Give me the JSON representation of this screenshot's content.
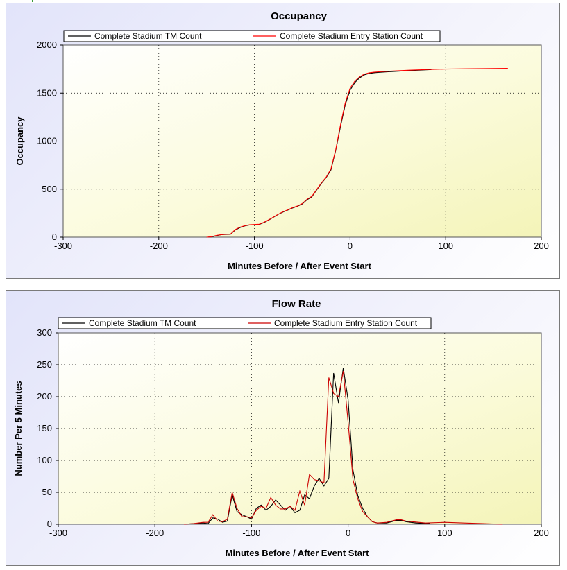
{
  "chart_data": [
    {
      "type": "line",
      "title": "Occupancy",
      "xlabel": "Minutes Before / After Event Start",
      "ylabel": "Occupancy",
      "xlim": [
        -300,
        200
      ],
      "ylim": [
        0,
        2000
      ],
      "xticks": [
        -300,
        -200,
        -100,
        0,
        100,
        200
      ],
      "yticks": [
        0,
        500,
        1000,
        1500,
        2000
      ],
      "grid": true,
      "legend_position": "top",
      "series": [
        {
          "name": "Complete Stadium TM Count",
          "color": "#000000",
          "points": [
            [
              -150,
              0
            ],
            [
              -145,
              3
            ],
            [
              -140,
              15
            ],
            [
              -135,
              25
            ],
            [
              -130,
              28
            ],
            [
              -125,
              30
            ],
            [
              -120,
              75
            ],
            [
              -115,
              100
            ],
            [
              -110,
              118
            ],
            [
              -105,
              128
            ],
            [
              -100,
              130
            ],
            [
              -95,
              132
            ],
            [
              -90,
              152
            ],
            [
              -85,
              178
            ],
            [
              -80,
              208
            ],
            [
              -75,
              238
            ],
            [
              -70,
              262
            ],
            [
              -65,
              282
            ],
            [
              -60,
              305
            ],
            [
              -55,
              322
            ],
            [
              -50,
              345
            ],
            [
              -45,
              390
            ],
            [
              -40,
              420
            ],
            [
              -35,
              490
            ],
            [
              -30,
              560
            ],
            [
              -25,
              620
            ],
            [
              -20,
              700
            ],
            [
              -15,
              900
            ],
            [
              -10,
              1150
            ],
            [
              -5,
              1380
            ],
            [
              0,
              1530
            ],
            [
              5,
              1610
            ],
            [
              10,
              1660
            ],
            [
              15,
              1690
            ],
            [
              20,
              1705
            ],
            [
              25,
              1712
            ],
            [
              30,
              1716
            ],
            [
              40,
              1722
            ],
            [
              50,
              1728
            ],
            [
              60,
              1733
            ],
            [
              70,
              1738
            ],
            [
              85,
              1745
            ]
          ]
        },
        {
          "name": "Complete Stadium Entry Station Count",
          "color": "#ff0000",
          "points": [
            [
              -150,
              0
            ],
            [
              -145,
              4
            ],
            [
              -140,
              18
            ],
            [
              -135,
              26
            ],
            [
              -130,
              30
            ],
            [
              -125,
              32
            ],
            [
              -120,
              80
            ],
            [
              -115,
              105
            ],
            [
              -110,
              120
            ],
            [
              -105,
              130
            ],
            [
              -100,
              132
            ],
            [
              -95,
              135
            ],
            [
              -90,
              155
            ],
            [
              -85,
              182
            ],
            [
              -80,
              210
            ],
            [
              -75,
              240
            ],
            [
              -70,
              265
            ],
            [
              -65,
              285
            ],
            [
              -60,
              308
            ],
            [
              -55,
              325
            ],
            [
              -50,
              350
            ],
            [
              -45,
              395
            ],
            [
              -40,
              425
            ],
            [
              -35,
              495
            ],
            [
              -30,
              565
            ],
            [
              -25,
              625
            ],
            [
              -20,
              710
            ],
            [
              -15,
              910
            ],
            [
              -10,
              1170
            ],
            [
              -5,
              1400
            ],
            [
              0,
              1550
            ],
            [
              5,
              1625
            ],
            [
              10,
              1670
            ],
            [
              15,
              1698
            ],
            [
              20,
              1712
            ],
            [
              25,
              1718
            ],
            [
              30,
              1722
            ],
            [
              40,
              1728
            ],
            [
              60,
              1738
            ],
            [
              80,
              1745
            ],
            [
              100,
              1750
            ],
            [
              120,
              1753
            ],
            [
              140,
              1755
            ],
            [
              165,
              1758
            ]
          ]
        }
      ]
    },
    {
      "type": "line",
      "title": "Flow Rate",
      "xlabel": "Minutes Before / After Event Start",
      "ylabel": "Number Per 5 Minutes",
      "xlim": [
        -300,
        200
      ],
      "ylim": [
        0,
        300
      ],
      "xticks": [
        -300,
        -200,
        -100,
        0,
        100,
        200
      ],
      "yticks": [
        0,
        50,
        100,
        150,
        200,
        250,
        300
      ],
      "grid": true,
      "legend_position": "top",
      "series": [
        {
          "name": "Complete Stadium TM Count",
          "color": "#000000",
          "points": [
            [
              -170,
              0
            ],
            [
              -160,
              1
            ],
            [
              -150,
              2
            ],
            [
              -145,
              1
            ],
            [
              -140,
              10
            ],
            [
              -135,
              8
            ],
            [
              -130,
              3
            ],
            [
              -125,
              5
            ],
            [
              -120,
              46
            ],
            [
              -115,
              20
            ],
            [
              -110,
              15
            ],
            [
              -105,
              12
            ],
            [
              -100,
              8
            ],
            [
              -95,
              25
            ],
            [
              -90,
              30
            ],
            [
              -85,
              22
            ],
            [
              -80,
              28
            ],
            [
              -75,
              38
            ],
            [
              -70,
              30
            ],
            [
              -65,
              22
            ],
            [
              -60,
              28
            ],
            [
              -55,
              18
            ],
            [
              -50,
              22
            ],
            [
              -45,
              46
            ],
            [
              -40,
              40
            ],
            [
              -35,
              60
            ],
            [
              -30,
              72
            ],
            [
              -25,
              60
            ],
            [
              -20,
              72
            ],
            [
              -15,
              237
            ],
            [
              -10,
              190
            ],
            [
              -5,
              245
            ],
            [
              0,
              195
            ],
            [
              5,
              85
            ],
            [
              10,
              45
            ],
            [
              15,
              25
            ],
            [
              20,
              12
            ],
            [
              25,
              4
            ],
            [
              30,
              2
            ],
            [
              40,
              2
            ],
            [
              50,
              6
            ],
            [
              55,
              6
            ],
            [
              60,
              4
            ],
            [
              70,
              2
            ],
            [
              85,
              1
            ]
          ]
        },
        {
          "name": "Complete Stadium Entry Station Count",
          "color": "#cc0000",
          "points": [
            [
              -170,
              0
            ],
            [
              -160,
              1
            ],
            [
              -150,
              3
            ],
            [
              -145,
              3
            ],
            [
              -140,
              15
            ],
            [
              -135,
              5
            ],
            [
              -130,
              4
            ],
            [
              -125,
              8
            ],
            [
              -120,
              50
            ],
            [
              -115,
              25
            ],
            [
              -110,
              12
            ],
            [
              -105,
              12
            ],
            [
              -100,
              10
            ],
            [
              -95,
              22
            ],
            [
              -90,
              28
            ],
            [
              -85,
              25
            ],
            [
              -80,
              42
            ],
            [
              -75,
              30
            ],
            [
              -70,
              24
            ],
            [
              -65,
              24
            ],
            [
              -60,
              28
            ],
            [
              -55,
              22
            ],
            [
              -50,
              52
            ],
            [
              -45,
              30
            ],
            [
              -40,
              78
            ],
            [
              -35,
              70
            ],
            [
              -30,
              68
            ],
            [
              -25,
              65
            ],
            [
              -20,
              230
            ],
            [
              -15,
              205
            ],
            [
              -10,
              200
            ],
            [
              -5,
              240
            ],
            [
              0,
              160
            ],
            [
              5,
              70
            ],
            [
              10,
              40
            ],
            [
              15,
              20
            ],
            [
              20,
              12
            ],
            [
              25,
              4
            ],
            [
              30,
              2
            ],
            [
              40,
              3
            ],
            [
              50,
              7
            ],
            [
              55,
              7
            ],
            [
              60,
              5
            ],
            [
              80,
              2
            ],
            [
              100,
              3
            ],
            [
              120,
              2
            ],
            [
              140,
              1
            ],
            [
              160,
              0
            ]
          ]
        }
      ]
    }
  ]
}
